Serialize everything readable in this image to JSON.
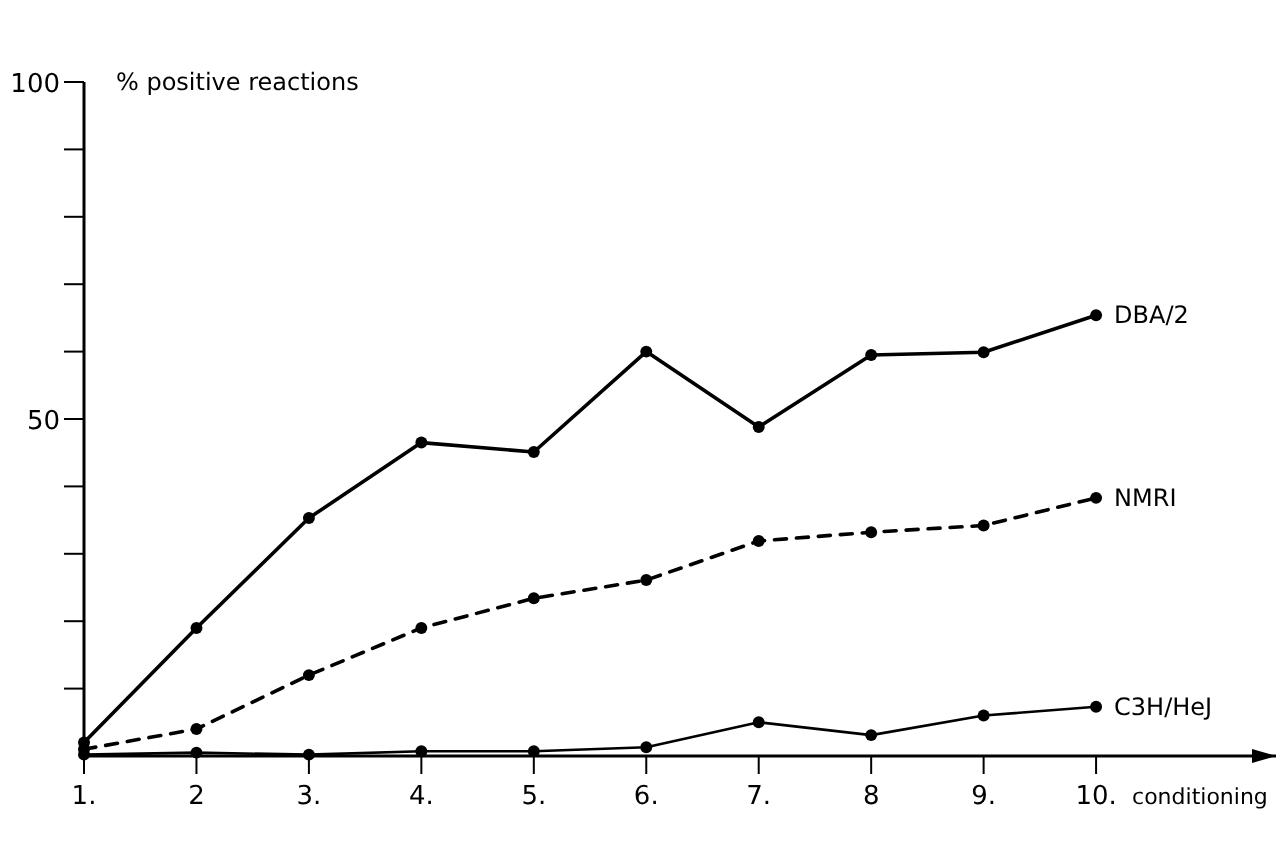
{
  "chart_data": {
    "type": "line",
    "ylabel": "% positive reactions",
    "xlabel": "conditioning",
    "x": [
      1,
      2,
      3,
      4,
      5,
      6,
      7,
      8,
      9,
      10
    ],
    "xlim": [
      1,
      11.6
    ],
    "xticks": [
      {
        "value": 1,
        "label": "1."
      },
      {
        "value": 2,
        "label": "2"
      },
      {
        "value": 3,
        "label": "3."
      },
      {
        "value": 4,
        "label": "4."
      },
      {
        "value": 5,
        "label": "5."
      },
      {
        "value": 6,
        "label": "6."
      },
      {
        "value": 7,
        "label": "7."
      },
      {
        "value": 8,
        "label": "8"
      },
      {
        "value": 9,
        "label": "9."
      },
      {
        "value": 10,
        "label": "10."
      }
    ],
    "ylim": [
      0,
      100
    ],
    "yticks": [
      {
        "value": 10,
        "label": null
      },
      {
        "value": 20,
        "label": null
      },
      {
        "value": 30,
        "label": null
      },
      {
        "value": 40,
        "label": null
      },
      50,
      {
        "value": 60,
        "label": null
      },
      {
        "value": 70,
        "label": null
      },
      {
        "value": 80,
        "label": null
      },
      {
        "value": 90,
        "label": null
      },
      100
    ],
    "marker": "circle",
    "grid": false,
    "series": [
      {
        "name": "DBA/2",
        "color": "#000000",
        "line_style": "solid",
        "values": [
          2,
          19,
          35.3,
          46.5,
          45.1,
          60,
          48.8,
          59.5,
          59.9,
          65.4
        ]
      },
      {
        "name": "NMRI",
        "color": "#000000",
        "line_style": "dashed",
        "values": [
          1,
          4,
          12,
          19,
          23.4,
          26.1,
          31.9,
          33.2,
          34.2,
          38.3
        ]
      },
      {
        "name": "C3H/HeJ",
        "color": "#000000",
        "line_style": "solid",
        "values": [
          0.2,
          0.5,
          0.2,
          0.7,
          0.7,
          1.3,
          5,
          3.1,
          6,
          7.3
        ]
      }
    ]
  }
}
